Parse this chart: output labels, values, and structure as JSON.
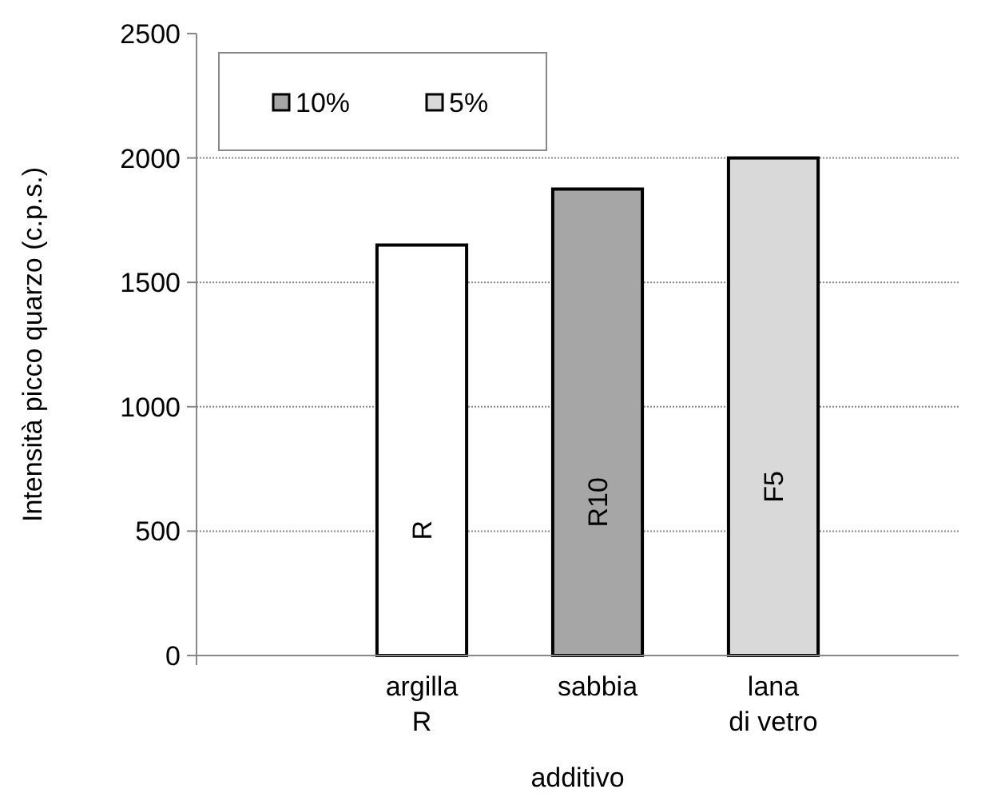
{
  "chart_data": {
    "type": "bar",
    "xlabel": "additivo",
    "ylabel": "Intensità picco quarzo (c.p.s.)",
    "categories": [
      null,
      "argilla\nR",
      "sabbia",
      "lana\ndi vetro",
      null
    ],
    "series": [
      {
        "color": "#ffffff",
        "values": [
          null,
          1650,
          null,
          null,
          null
        ],
        "value_labels": [
          null,
          "R",
          null,
          null,
          null
        ]
      },
      {
        "name": "10%",
        "color": "#a6a6a6",
        "values": [
          null,
          null,
          1875,
          null,
          null
        ],
        "value_labels": [
          null,
          null,
          "R10",
          null,
          null
        ]
      },
      {
        "name": "5%",
        "color": "#d9d9d9",
        "values": [
          null,
          null,
          null,
          2000,
          null
        ],
        "value_labels": [
          null,
          null,
          null,
          "F5",
          null
        ]
      }
    ],
    "ylim": [
      0,
      2500
    ],
    "yticks": [
      0,
      500,
      1000,
      1500,
      2000,
      2500
    ],
    "grid": "y",
    "legend": "top left"
  }
}
